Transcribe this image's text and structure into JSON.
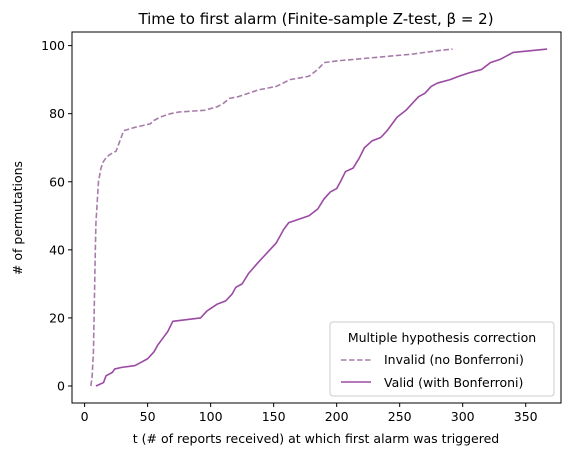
{
  "chart_data": {
    "type": "line",
    "title": "Time to first alarm (Finite-sample Z-test, β = 2)",
    "xlabel": "t (# of reports received) at which first alarm was triggered",
    "ylabel": "# of permutations",
    "xlim": [
      -10,
      378
    ],
    "ylim": [
      -5,
      104
    ],
    "xticks": [
      0,
      50,
      100,
      150,
      200,
      250,
      300,
      350
    ],
    "yticks": [
      0,
      20,
      40,
      60,
      80,
      100
    ],
    "grid": false,
    "legend": {
      "title": "Multiple hypothesis correction",
      "placement": "bottom-right"
    },
    "series": [
      {
        "name": "Invalid (no Bonferroni)",
        "color": "#a87caa",
        "dash": "dashed",
        "points": [
          [
            5,
            0
          ],
          [
            6,
            3
          ],
          [
            7,
            10
          ],
          [
            7.5,
            20
          ],
          [
            8,
            30
          ],
          [
            8.5,
            40
          ],
          [
            9,
            48
          ],
          [
            10,
            54
          ],
          [
            10.5,
            57
          ],
          [
            11,
            60
          ],
          [
            12,
            62
          ],
          [
            13,
            64
          ],
          [
            15,
            66
          ],
          [
            17,
            67
          ],
          [
            20,
            68
          ],
          [
            25,
            69
          ],
          [
            28,
            72
          ],
          [
            31,
            75
          ],
          [
            40,
            76
          ],
          [
            52,
            77
          ],
          [
            55,
            78
          ],
          [
            60,
            79
          ],
          [
            68,
            80
          ],
          [
            75,
            80.5
          ],
          [
            95,
            81
          ],
          [
            100,
            81.5
          ],
          [
            105,
            82
          ],
          [
            110,
            83
          ],
          [
            115,
            84.5
          ],
          [
            122,
            85
          ],
          [
            130,
            86
          ],
          [
            138,
            87
          ],
          [
            152,
            88
          ],
          [
            163,
            90
          ],
          [
            178,
            91
          ],
          [
            185,
            93
          ],
          [
            190,
            95
          ],
          [
            200,
            95.5
          ],
          [
            230,
            96.5
          ],
          [
            260,
            97.5
          ],
          [
            280,
            98.5
          ],
          [
            292,
            99
          ]
        ]
      },
      {
        "name": "Valid (with Bonferroni)",
        "color": "#9b4aa3",
        "dash": "solid",
        "points": [
          [
            9,
            0
          ],
          [
            15,
            1
          ],
          [
            17,
            3
          ],
          [
            22,
            4
          ],
          [
            24,
            5
          ],
          [
            30,
            5.5
          ],
          [
            40,
            6
          ],
          [
            45,
            7
          ],
          [
            50,
            8
          ],
          [
            55,
            10
          ],
          [
            58,
            12
          ],
          [
            62,
            14
          ],
          [
            66,
            16
          ],
          [
            70,
            19
          ],
          [
            92,
            20
          ],
          [
            97,
            22
          ],
          [
            105,
            24
          ],
          [
            112,
            25
          ],
          [
            117,
            27
          ],
          [
            120,
            29
          ],
          [
            125,
            30
          ],
          [
            130,
            33
          ],
          [
            137,
            36
          ],
          [
            142,
            38
          ],
          [
            147,
            40
          ],
          [
            152,
            42
          ],
          [
            155,
            44
          ],
          [
            158,
            46
          ],
          [
            162,
            48
          ],
          [
            170,
            49
          ],
          [
            178,
            50
          ],
          [
            185,
            52
          ],
          [
            190,
            55
          ],
          [
            195,
            57
          ],
          [
            200,
            58
          ],
          [
            203,
            60
          ],
          [
            207,
            63
          ],
          [
            213,
            64
          ],
          [
            218,
            67
          ],
          [
            222,
            70
          ],
          [
            228,
            72
          ],
          [
            235,
            73
          ],
          [
            240,
            75
          ],
          [
            244,
            77
          ],
          [
            248,
            79
          ],
          [
            255,
            81
          ],
          [
            260,
            83
          ],
          [
            265,
            85
          ],
          [
            270,
            86
          ],
          [
            275,
            88
          ],
          [
            280,
            89
          ],
          [
            290,
            90
          ],
          [
            297,
            91
          ],
          [
            305,
            92
          ],
          [
            315,
            93
          ],
          [
            322,
            95
          ],
          [
            330,
            96
          ],
          [
            340,
            98
          ],
          [
            367,
            99
          ]
        ]
      }
    ]
  }
}
